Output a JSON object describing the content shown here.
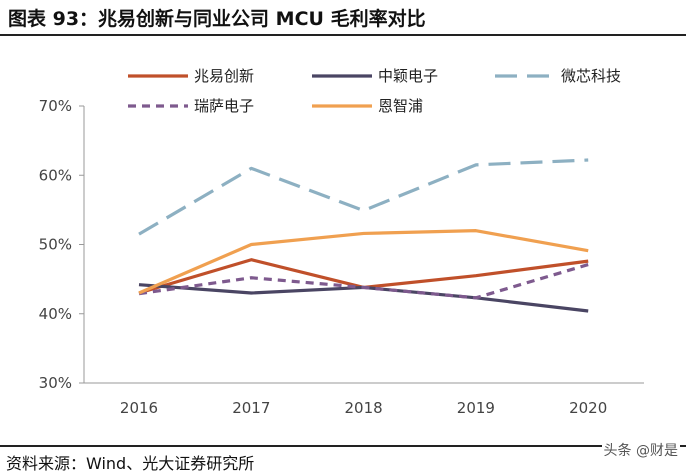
{
  "title": "图表 93：兆易创新与同业公司 MCU 毛利率对比",
  "source": "资料来源：Wind、光大证券研究所",
  "watermark": "头条 @财是",
  "chart_data": {
    "type": "line",
    "title": "",
    "xlabel": "",
    "ylabel": "",
    "categories": [
      "2016",
      "2017",
      "2018",
      "2019",
      "2020"
    ],
    "ylim": [
      30,
      70
    ],
    "yticks": [
      "30%",
      "40%",
      "50%",
      "60%",
      "70%"
    ],
    "grid": false,
    "legend": "top",
    "series": [
      {
        "name": "兆易创新",
        "color": "#C0502A",
        "dash": "solid",
        "values": [
          43.0,
          47.8,
          43.8,
          45.5,
          47.6
        ]
      },
      {
        "name": "中颖电子",
        "color": "#4A4563",
        "dash": "solid",
        "values": [
          44.2,
          43.0,
          43.8,
          42.3,
          40.4
        ]
      },
      {
        "name": "微芯科技",
        "color": "#8DB0C2",
        "dash": "long-dash",
        "values": [
          51.5,
          61.0,
          54.9,
          61.5,
          62.2
        ]
      },
      {
        "name": "瑞萨电子",
        "color": "#7E5A8E",
        "dash": "short-dash",
        "values": [
          42.9,
          45.2,
          43.8,
          42.3,
          47.1
        ]
      },
      {
        "name": "恩智浦",
        "color": "#F0A050",
        "dash": "solid",
        "values": [
          43.0,
          50.0,
          51.6,
          52.0,
          49.1
        ]
      }
    ]
  }
}
